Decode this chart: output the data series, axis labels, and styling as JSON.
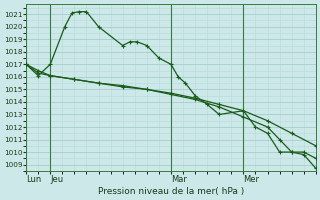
{
  "background_color": "#cce8e8",
  "grid_major_color": "#a0c8c8",
  "grid_minor_color": "#b8d8d8",
  "line_color": "#1a5c1a",
  "ylabel": "Pression niveau de la mer( hPa )",
  "ylim": [
    1008.5,
    1021.8
  ],
  "yticks": [
    1009,
    1010,
    1011,
    1012,
    1013,
    1014,
    1015,
    1016,
    1017,
    1018,
    1019,
    1020,
    1021
  ],
  "xlim": [
    0,
    120
  ],
  "vline_positions": [
    0,
    10,
    60,
    90
  ],
  "xtick_labels": [
    "Lun",
    "Jeu",
    "Mar",
    "Mer"
  ],
  "series1_x": [
    0,
    5,
    10,
    16,
    19,
    22,
    25,
    30,
    40,
    43,
    46,
    50,
    55,
    60,
    63,
    66,
    70,
    75,
    80,
    90,
    95,
    100,
    105,
    110,
    115,
    120
  ],
  "series1_y": [
    1017.0,
    1016.1,
    1017.0,
    1020.0,
    1021.1,
    1021.2,
    1021.2,
    1020.0,
    1018.5,
    1018.8,
    1018.8,
    1018.5,
    1017.5,
    1017.0,
    1016.0,
    1015.5,
    1014.5,
    1013.8,
    1013.0,
    1013.3,
    1012.0,
    1011.5,
    1010.0,
    1010.0,
    1010.0,
    1009.5
  ],
  "series2_x": [
    0,
    5,
    10,
    20,
    30,
    40,
    50,
    60,
    70,
    80,
    90,
    100,
    110,
    120
  ],
  "series2_y": [
    1017.0,
    1016.5,
    1016.1,
    1015.8,
    1015.5,
    1015.3,
    1015.0,
    1014.7,
    1014.3,
    1013.8,
    1013.3,
    1012.5,
    1011.5,
    1010.5
  ],
  "series3_x": [
    0,
    5,
    10,
    20,
    30,
    40,
    50,
    60,
    70,
    80,
    90,
    100,
    105,
    110,
    115,
    120
  ],
  "series3_y": [
    1017.0,
    1016.3,
    1016.1,
    1015.8,
    1015.5,
    1015.2,
    1015.0,
    1014.6,
    1014.2,
    1013.6,
    1012.8,
    1012.0,
    1011.0,
    1010.0,
    1009.8,
    1008.7
  ],
  "marker_s1": [
    0,
    5,
    10,
    16,
    19,
    22,
    25,
    30,
    40,
    43,
    46,
    50,
    55,
    60,
    63,
    66,
    70,
    75,
    80,
    90,
    95,
    100,
    105,
    110,
    115,
    120
  ],
  "marker_s2": [
    0,
    5,
    10,
    40,
    60,
    90,
    110,
    120
  ],
  "marker_s3": [
    0,
    5,
    10,
    40,
    60,
    90,
    100,
    105,
    110,
    115,
    120
  ]
}
